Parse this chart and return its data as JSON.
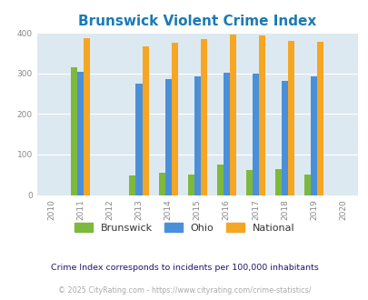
{
  "title": "Brunswick Violent Crime Index",
  "title_color": "#1a7ab5",
  "years": [
    2010,
    2011,
    2012,
    2013,
    2014,
    2015,
    2016,
    2017,
    2018,
    2019,
    2020
  ],
  "data_years": [
    2011,
    2013,
    2014,
    2015,
    2016,
    2017,
    2018,
    2019
  ],
  "brunswick": [
    315,
    48,
    56,
    50,
    75,
    62,
    64,
    50
  ],
  "ohio": [
    305,
    276,
    286,
    292,
    301,
    300,
    281,
    294
  ],
  "national": [
    387,
    367,
    376,
    384,
    397,
    394,
    381,
    378
  ],
  "brunswick_color": "#7db93d",
  "ohio_color": "#4a90d9",
  "national_color": "#f5a623",
  "bg_color": "#dde9f0",
  "ylabel_min": 0,
  "ylabel_max": 400,
  "footnote1": "Crime Index corresponds to incidents per 100,000 inhabitants",
  "footnote2": "© 2025 CityRating.com - https://www.cityrating.com/crime-statistics/",
  "legend_labels": [
    "Brunswick",
    "Ohio",
    "National"
  ],
  "bar_width": 0.22,
  "footnote1_color": "#1a1a6e",
  "footnote2_color": "#aaaaaa",
  "legend_text_color": "#333333",
  "tick_color": "#888888"
}
